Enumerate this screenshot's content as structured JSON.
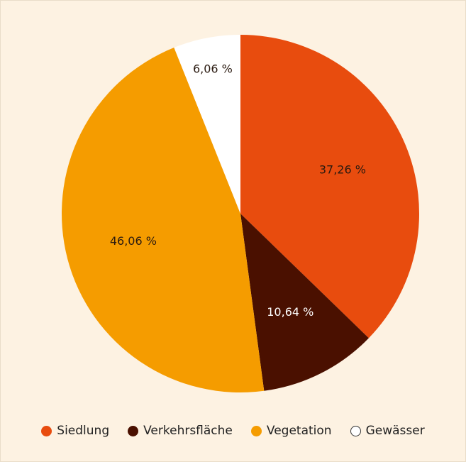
{
  "chart_data": {
    "type": "pie",
    "categories": [
      "Siedlung",
      "Verkehrsfläche",
      "Vegetation",
      "Gewässer"
    ],
    "values": [
      37.26,
      10.64,
      46.06,
      6.06
    ],
    "value_labels": [
      "37,26 %",
      "10,64 %",
      "46,06 %",
      "6,06 %"
    ],
    "colors": [
      "#e84c0e",
      "#4a1000",
      "#f59c00",
      "#ffffff"
    ],
    "legend": "bottom"
  }
}
